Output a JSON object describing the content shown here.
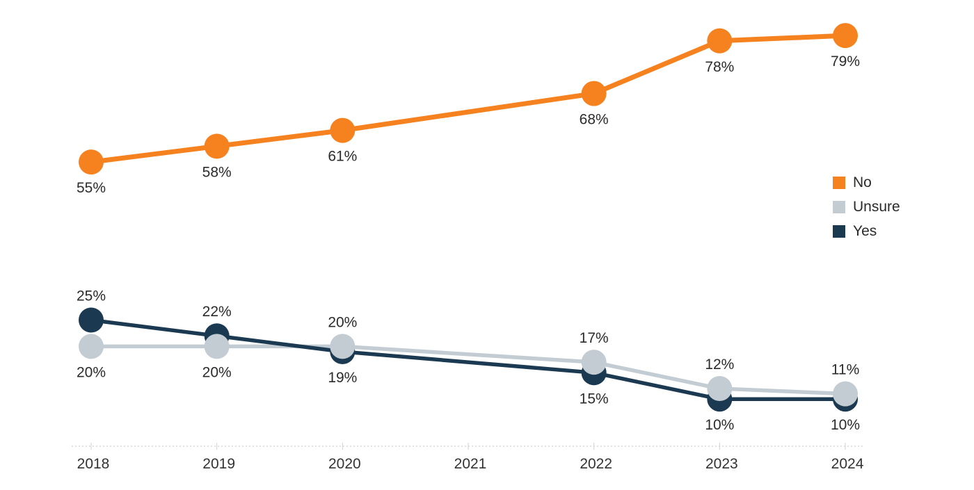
{
  "chart_data": {
    "type": "line",
    "title": "",
    "x_categories": [
      "2018",
      "2019",
      "2020",
      "2021",
      "2022",
      "2023",
      "2024"
    ],
    "series": [
      {
        "name": "No",
        "color": "#F6821F",
        "points": [
          {
            "x": "2018",
            "y": 55,
            "label": "55%",
            "label_side": "below"
          },
          {
            "x": "2019",
            "y": 58,
            "label": "58%",
            "label_side": "below"
          },
          {
            "x": "2020",
            "y": 61,
            "label": "61%",
            "label_side": "below"
          },
          {
            "x": "2022",
            "y": 68,
            "label": "68%",
            "label_side": "below"
          },
          {
            "x": "2023",
            "y": 78,
            "label": "78%",
            "label_side": "below"
          },
          {
            "x": "2024",
            "y": 79,
            "label": "79%",
            "label_side": "below"
          }
        ]
      },
      {
        "name": "Unsure",
        "color": "#C3CCD3",
        "points": [
          {
            "x": "2018",
            "y": 20,
            "label": "20%",
            "label_side": "below"
          },
          {
            "x": "2019",
            "y": 20,
            "label": "20%",
            "label_side": "below"
          },
          {
            "x": "2020",
            "y": 20,
            "label": "20%",
            "label_side": "above"
          },
          {
            "x": "2022",
            "y": 17,
            "label": "17%",
            "label_side": "above"
          },
          {
            "x": "2023",
            "y": 12,
            "label": "12%",
            "label_side": "above"
          },
          {
            "x": "2024",
            "y": 11,
            "label": "11%",
            "label_side": "above"
          }
        ]
      },
      {
        "name": "Yes",
        "color": "#1B3A52",
        "points": [
          {
            "x": "2018",
            "y": 25,
            "label": "25%",
            "label_side": "above"
          },
          {
            "x": "2019",
            "y": 22,
            "label": "22%",
            "label_side": "above"
          },
          {
            "x": "2020",
            "y": 19,
            "label": "19%",
            "label_side": "below"
          },
          {
            "x": "2022",
            "y": 15,
            "label": "15%",
            "label_side": "below"
          },
          {
            "x": "2023",
            "y": 10,
            "label": "10%",
            "label_side": "below"
          },
          {
            "x": "2024",
            "y": 10,
            "label": "10%",
            "label_side": "below"
          }
        ]
      }
    ],
    "legend": {
      "position": "right",
      "entries": [
        {
          "label": "No",
          "color": "#F6821F"
        },
        {
          "label": "Unsure",
          "color": "#C3CCD3"
        },
        {
          "label": "Yes",
          "color": "#1B3A52"
        }
      ]
    },
    "ylim": [
      0,
      85
    ],
    "grid": false,
    "axis": {
      "baseline_style": "dotted",
      "tick_labels": [
        "2018",
        "2019",
        "2020",
        "2021",
        "2022",
        "2023",
        "2024"
      ]
    }
  },
  "colors": {
    "background": "#FFFFFF",
    "label_text": "#2B2B2B",
    "axis_text": "#333333",
    "axis_line": "#D2D2D2"
  }
}
